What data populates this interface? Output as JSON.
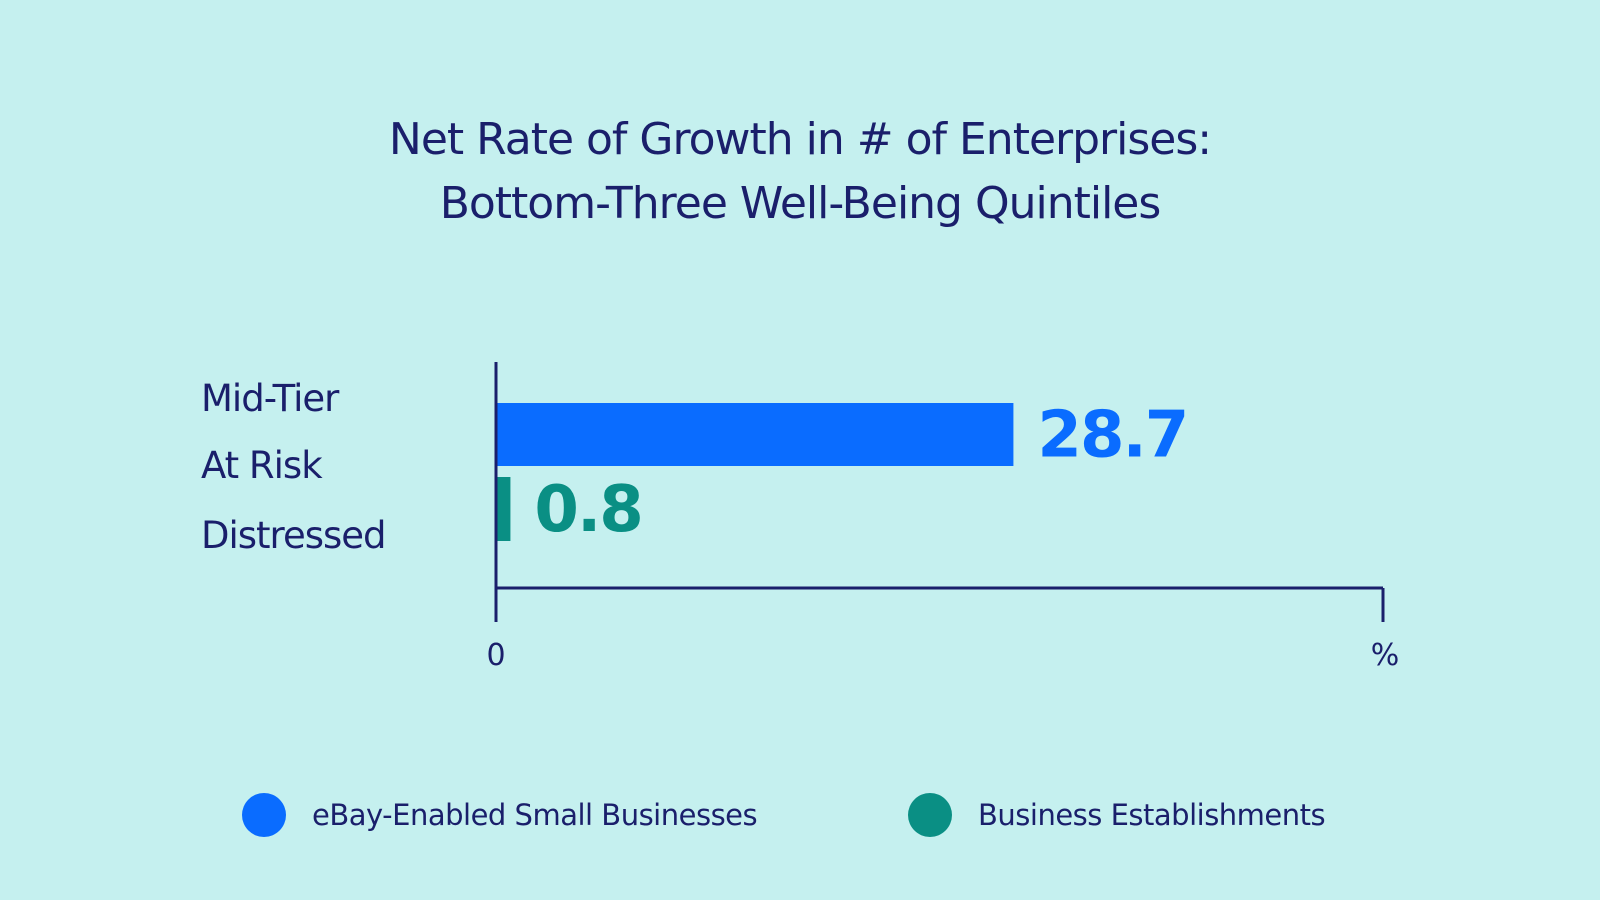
{
  "chart_data": {
    "type": "bar",
    "orientation": "horizontal",
    "title": [
      "Net Rate of Growth in # of Enterprises:",
      "Bottom-Three Well-Being Quintiles"
    ],
    "categories": [
      "Mid-Tier",
      "At Risk",
      "Distressed"
    ],
    "series": [
      {
        "name": "eBay-Enabled Small Businesses",
        "color": "#0a6cff",
        "value": 28.7,
        "label": "28.7"
      },
      {
        "name": "Business Establishments",
        "color": "#0a8f84",
        "value": 0.8,
        "label": "0.8"
      }
    ],
    "xlim": [
      0,
      49.2
    ],
    "x_ticks": [
      "0",
      "%"
    ],
    "legend_placement": "bottom",
    "grid": false
  },
  "colors": {
    "background": "#c5f0ef",
    "text": "#1a1f6b",
    "axis": "#1a1f6b"
  }
}
